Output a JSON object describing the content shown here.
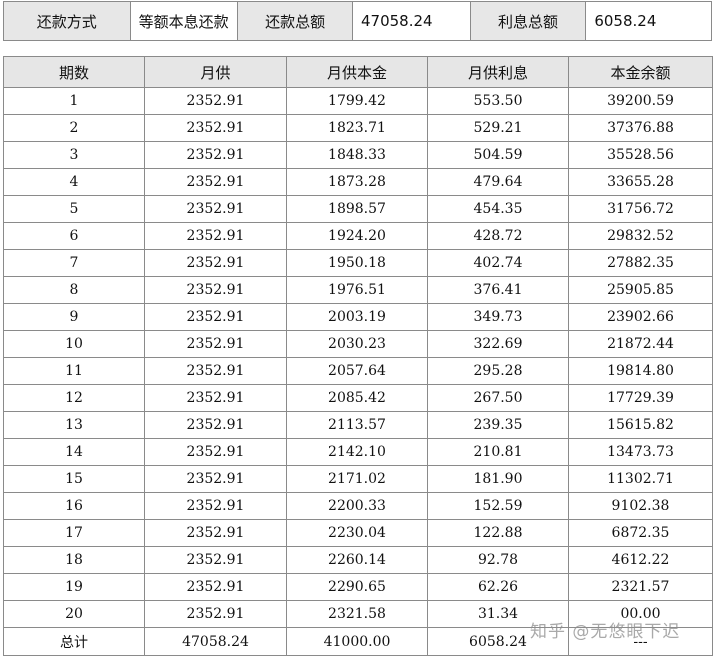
{
  "summary": {
    "method_label": "还款方式",
    "method_value": "等额本息还款",
    "total_label": "还款总额",
    "total_value": "47058.24",
    "interest_label": "利息总额",
    "interest_value": "6058.24"
  },
  "table": {
    "headers": [
      "期数",
      "月供",
      "月供本金",
      "月供利息",
      "本金余额"
    ],
    "rows": [
      [
        "1",
        "2352.91",
        "1799.42",
        "553.50",
        "39200.59"
      ],
      [
        "2",
        "2352.91",
        "1823.71",
        "529.21",
        "37376.88"
      ],
      [
        "3",
        "2352.91",
        "1848.33",
        "504.59",
        "35528.56"
      ],
      [
        "4",
        "2352.91",
        "1873.28",
        "479.64",
        "33655.28"
      ],
      [
        "5",
        "2352.91",
        "1898.57",
        "454.35",
        "31756.72"
      ],
      [
        "6",
        "2352.91",
        "1924.20",
        "428.72",
        "29832.52"
      ],
      [
        "7",
        "2352.91",
        "1950.18",
        "402.74",
        "27882.35"
      ],
      [
        "8",
        "2352.91",
        "1976.51",
        "376.41",
        "25905.85"
      ],
      [
        "9",
        "2352.91",
        "2003.19",
        "349.73",
        "23902.66"
      ],
      [
        "10",
        "2352.91",
        "2030.23",
        "322.69",
        "21872.44"
      ],
      [
        "11",
        "2352.91",
        "2057.64",
        "295.28",
        "19814.80"
      ],
      [
        "12",
        "2352.91",
        "2085.42",
        "267.50",
        "17729.39"
      ],
      [
        "13",
        "2352.91",
        "2113.57",
        "239.35",
        "15615.82"
      ],
      [
        "14",
        "2352.91",
        "2142.10",
        "210.81",
        "13473.73"
      ],
      [
        "15",
        "2352.91",
        "2171.02",
        "181.90",
        "11302.71"
      ],
      [
        "16",
        "2352.91",
        "2200.33",
        "152.59",
        "9102.38"
      ],
      [
        "17",
        "2352.91",
        "2230.04",
        "122.88",
        "6872.35"
      ],
      [
        "18",
        "2352.91",
        "2260.14",
        "92.78",
        "4612.22"
      ],
      [
        "19",
        "2352.91",
        "2290.65",
        "62.26",
        "2321.57"
      ],
      [
        "20",
        "2352.91",
        "2321.58",
        "31.34",
        "00.00"
      ]
    ],
    "total": [
      "总计",
      "47058.24",
      "41000.00",
      "6058.24",
      "---"
    ]
  },
  "watermark": "知乎 @无悠眼下迟"
}
